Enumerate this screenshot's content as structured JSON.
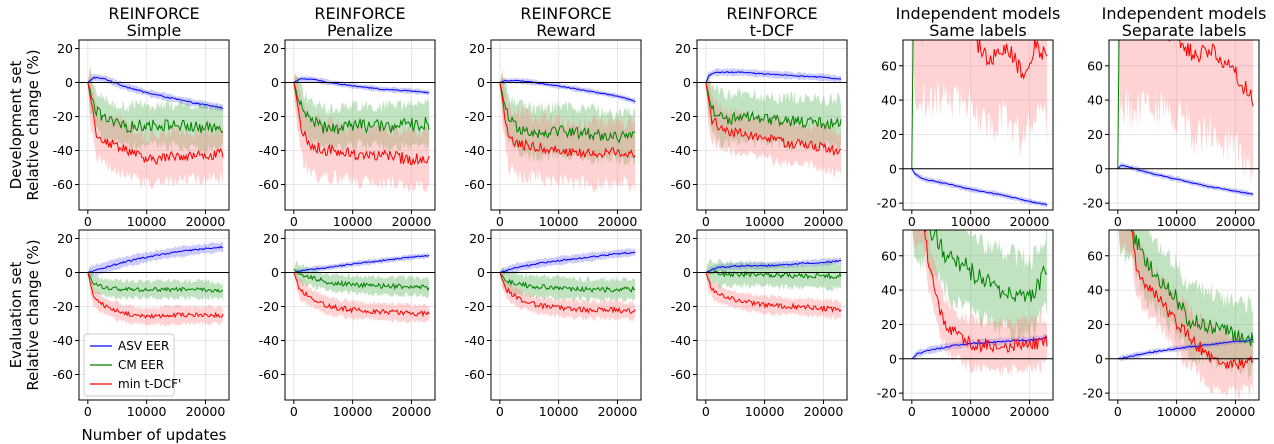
{
  "chart_data": {
    "type": "line",
    "column_titles": [
      [
        "REINFORCE",
        "Simple"
      ],
      [
        "REINFORCE",
        "Penalize"
      ],
      [
        "REINFORCE",
        "Reward"
      ],
      [
        "REINFORCE",
        "t-DCF"
      ],
      [
        "Independent models",
        "Same labels"
      ],
      [
        "Independent models",
        "Separate labels"
      ]
    ],
    "row_labels": [
      [
        "Development set",
        "Relative change (%)"
      ],
      [
        "Evaluation set",
        "Relative change (%)"
      ]
    ],
    "xlabel": "Number of updates",
    "xlim": [
      -1500,
      24000
    ],
    "xticks": [
      0,
      10000,
      20000
    ],
    "ylim_reinforce": [
      -75,
      25
    ],
    "yticks_reinforce": [
      -60,
      -40,
      -20,
      0,
      20
    ],
    "ylim_independent": [
      -24,
      75
    ],
    "yticks_independent": [
      -20,
      0,
      20,
      40,
      60
    ],
    "grid": true,
    "zero_line": true,
    "legend": {
      "placement": "lower-left",
      "panel": "evaluation-simple",
      "entries": [
        "ASV EER",
        "CM EER",
        "min t-DCF'"
      ]
    },
    "series_colors": {
      "asv": "#0000ff",
      "cm": "#008000",
      "tdcf": "#ff0000"
    },
    "band_colors": {
      "asv": "#6b6bff",
      "cm": "#4fae4f",
      "tdcf": "#ff8080"
    },
    "panels": [
      {
        "row": 0,
        "col": 0,
        "curves": {
          "asv": {
            "x": [
              0,
              1000,
              3000,
              6000,
              10000,
              14000,
              18000,
              23000
            ],
            "y": [
              0,
              3,
              2,
              -2,
              -6,
              -9,
              -12,
              -15
            ],
            "band": 2,
            "noise": 0.4
          },
          "cm": {
            "x": [
              0,
              1500,
              3000,
              6000,
              10000,
              15000,
              20000,
              23000
            ],
            "y": [
              0,
              -17,
              -22,
              -26,
              -25,
              -25,
              -27,
              -26
            ],
            "band": 12,
            "noise": 3.5
          },
          "tdcf": {
            "x": [
              0,
              1500,
              3000,
              6000,
              10000,
              15000,
              20000,
              23000
            ],
            "y": [
              0,
              -30,
              -35,
              -38,
              -46,
              -43,
              -43,
              -42
            ],
            "band": 14,
            "noise": 3.0
          }
        }
      },
      {
        "row": 0,
        "col": 1,
        "curves": {
          "asv": {
            "x": [
              0,
              1000,
              3000,
              6000,
              10000,
              15000,
              20000,
              23000
            ],
            "y": [
              0,
              2,
              2,
              0,
              -2,
              -4,
              -5,
              -6
            ],
            "band": 1.5,
            "noise": 0.3
          },
          "cm": {
            "x": [
              0,
              1500,
              3000,
              6000,
              10000,
              15000,
              20000,
              23000
            ],
            "y": [
              0,
              -18,
              -23,
              -28,
              -25,
              -26,
              -25,
              -24
            ],
            "band": 12,
            "noise": 4.0
          },
          "tdcf": {
            "x": [
              0,
              1500,
              3000,
              6000,
              10000,
              15000,
              20000,
              23000
            ],
            "y": [
              0,
              -30,
              -38,
              -40,
              -42,
              -43,
              -45,
              -45
            ],
            "band": 16,
            "noise": 3.5
          }
        }
      },
      {
        "row": 0,
        "col": 2,
        "curves": {
          "asv": {
            "x": [
              0,
              1000,
              3000,
              6000,
              10000,
              15000,
              20000,
              23000
            ],
            "y": [
              0,
              1,
              1,
              0,
              -2,
              -5,
              -8,
              -11
            ],
            "band": 1.5,
            "noise": 0.3
          },
          "cm": {
            "x": [
              0,
              1500,
              3000,
              6000,
              10000,
              15000,
              20000,
              23000
            ],
            "y": [
              0,
              -22,
              -26,
              -30,
              -28,
              -30,
              -32,
              -32
            ],
            "band": 14,
            "noise": 3.5
          },
          "tdcf": {
            "x": [
              0,
              1500,
              3000,
              6000,
              10000,
              15000,
              20000,
              23000
            ],
            "y": [
              0,
              -33,
              -36,
              -38,
              -40,
              -42,
              -41,
              -42
            ],
            "band": 18,
            "noise": 3.0
          }
        }
      },
      {
        "row": 0,
        "col": 3,
        "curves": {
          "asv": {
            "x": [
              0,
              500,
              1500,
              3000,
              6000,
              10000,
              15000,
              20000,
              23000
            ],
            "y": [
              0,
              4,
              6,
              6,
              6,
              5,
              4,
              3,
              2
            ],
            "band": 2,
            "noise": 0.3
          },
          "cm": {
            "x": [
              0,
              1000,
              3000,
              6000,
              10000,
              15000,
              20000,
              23000
            ],
            "y": [
              0,
              -15,
              -22,
              -20,
              -22,
              -23,
              -24,
              -24
            ],
            "band": 14,
            "noise": 3.5
          },
          "tdcf": {
            "x": [
              0,
              1000,
              3000,
              6000,
              10000,
              15000,
              20000,
              23000
            ],
            "y": [
              0,
              -22,
              -28,
              -30,
              -33,
              -36,
              -38,
              -42
            ],
            "band": 12,
            "noise": 3.0
          }
        }
      },
      {
        "row": 0,
        "col": 4,
        "curves": {
          "asv": {
            "x": [
              0,
              500,
              2000,
              5000,
              10000,
              15000,
              20000,
              23000
            ],
            "y": [
              0,
              -3,
              -6,
              -8,
              -12,
              -15,
              -19,
              -21
            ],
            "band": 1.5,
            "noise": 0.3
          },
          "cm": {
            "x": [
              0,
              100,
              500,
              23000
            ],
            "y": [
              0,
              80,
              80,
              80
            ],
            "band": 0,
            "noise": 0
          },
          "tdcf": {
            "x": [
              0,
              3000,
              7000,
              10000,
              13000,
              16000,
              19000,
              21000,
              23000
            ],
            "y": [
              80,
              80,
              80,
              80,
              62,
              72,
              55,
              72,
              65
            ],
            "band": 40,
            "noise": 5.0
          }
        }
      },
      {
        "row": 0,
        "col": 5,
        "curves": {
          "asv": {
            "x": [
              0,
              500,
              3000,
              6000,
              10000,
              15000,
              20000,
              23000
            ],
            "y": [
              0,
              2,
              0,
              -3,
              -6,
              -10,
              -13,
              -15
            ],
            "band": 1.5,
            "noise": 0.3
          },
          "cm": {
            "x": [
              0,
              100,
              500,
              23000
            ],
            "y": [
              0,
              80,
              80,
              80
            ],
            "band": 0,
            "noise": 0
          },
          "tdcf": {
            "x": [
              0,
              3000,
              7000,
              10000,
              13000,
              16000,
              19000,
              21000,
              23000
            ],
            "y": [
              80,
              80,
              80,
              78,
              65,
              70,
              60,
              50,
              40
            ],
            "band": 45,
            "noise": 5.0
          }
        }
      },
      {
        "row": 1,
        "col": 0,
        "curves": {
          "asv": {
            "x": [
              0,
              3000,
              6000,
              10000,
              15000,
              20000,
              23000
            ],
            "y": [
              0,
              3,
              6,
              9,
              12,
              14,
              15
            ],
            "band": 3,
            "noise": 0.5
          },
          "cm": {
            "x": [
              0,
              1000,
              3000,
              6000,
              10000,
              15000,
              20000,
              23000
            ],
            "y": [
              0,
              -7,
              -9,
              -10,
              -10,
              -10,
              -10,
              -11
            ],
            "band": 5,
            "noise": 1.2
          },
          "tdcf": {
            "x": [
              0,
              1000,
              3000,
              6000,
              10000,
              15000,
              20000,
              23000
            ],
            "y": [
              0,
              -15,
              -20,
              -24,
              -26,
              -25,
              -25,
              -25
            ],
            "band": 5,
            "noise": 1.2
          }
        }
      },
      {
        "row": 1,
        "col": 1,
        "curves": {
          "asv": {
            "x": [
              0,
              3000,
              6000,
              10000,
              15000,
              20000,
              23000
            ],
            "y": [
              0,
              2,
              3,
              5,
              7,
              9,
              10
            ],
            "band": 1.5,
            "noise": 0.4
          },
          "cm": {
            "x": [
              0,
              1000,
              3000,
              6000,
              10000,
              15000,
              20000,
              23000
            ],
            "y": [
              2,
              -1,
              -3,
              -6,
              -7,
              -8,
              -8,
              -9
            ],
            "band": 5,
            "noise": 1.5
          },
          "tdcf": {
            "x": [
              0,
              1000,
              3000,
              6000,
              10000,
              15000,
              20000,
              23000
            ],
            "y": [
              0,
              -10,
              -15,
              -20,
              -22,
              -23,
              -24,
              -24
            ],
            "band": 5,
            "noise": 1.5
          }
        }
      },
      {
        "row": 1,
        "col": 2,
        "curves": {
          "asv": {
            "x": [
              0,
              3000,
              6000,
              10000,
              15000,
              20000,
              23000
            ],
            "y": [
              0,
              3,
              5,
              7,
              9,
              11,
              12
            ],
            "band": 2.5,
            "noise": 0.5
          },
          "cm": {
            "x": [
              0,
              1000,
              3000,
              6000,
              10000,
              15000,
              20000,
              23000
            ],
            "y": [
              0,
              -5,
              -7,
              -8,
              -9,
              -10,
              -10,
              -10
            ],
            "band": 6,
            "noise": 1.5
          },
          "tdcf": {
            "x": [
              0,
              1000,
              3000,
              6000,
              10000,
              15000,
              20000,
              23000
            ],
            "y": [
              0,
              -10,
              -15,
              -19,
              -21,
              -22,
              -22,
              -23
            ],
            "band": 5,
            "noise": 1.5
          }
        }
      },
      {
        "row": 1,
        "col": 3,
        "curves": {
          "asv": {
            "x": [
              0,
              2000,
              6000,
              10000,
              15000,
              20000,
              23000
            ],
            "y": [
              0,
              3,
              4,
              4,
              5,
              6,
              7
            ],
            "band": 2,
            "noise": 0.5
          },
          "cm": {
            "x": [
              0,
              1000,
              3000,
              6000,
              10000,
              15000,
              20000,
              23000
            ],
            "y": [
              0,
              0,
              -1,
              -1,
              -1,
              -2,
              -2,
              -2
            ],
            "band": 7,
            "noise": 1.5
          },
          "tdcf": {
            "x": [
              0,
              1000,
              3000,
              6000,
              10000,
              15000,
              20000,
              23000
            ],
            "y": [
              0,
              -10,
              -14,
              -17,
              -19,
              -20,
              -21,
              -22
            ],
            "band": 5,
            "noise": 1.5
          }
        }
      },
      {
        "row": 1,
        "col": 4,
        "curves": {
          "asv": {
            "x": [
              0,
              1000,
              3000,
              6000,
              10000,
              15000,
              20000,
              23000
            ],
            "y": [
              0,
              3,
              5,
              7,
              9,
              10,
              11,
              12
            ],
            "band": 2,
            "noise": 0.5
          },
          "cm": {
            "x": [
              0,
              1000,
              2000,
              4000,
              6000,
              9000,
              12000,
              16000,
              20000,
              23000
            ],
            "y": [
              80,
              80,
              80,
              72,
              60,
              55,
              45,
              40,
              35,
              52
            ],
            "band": 22,
            "noise": 6.0
          },
          "tdcf": {
            "x": [
              0,
              500,
              2000,
              3000,
              4000,
              5000,
              6000,
              9000,
              12000,
              16000,
              20000,
              23000
            ],
            "y": [
              80,
              80,
              80,
              52,
              40,
              26,
              18,
              10,
              8,
              7,
              9,
              10
            ],
            "band": 14,
            "noise": 4.0
          }
        }
      },
      {
        "row": 1,
        "col": 5,
        "curves": {
          "asv": {
            "x": [
              0,
              3000,
              6000,
              10000,
              15000,
              20000,
              23000
            ],
            "y": [
              0,
              2,
              4,
              6,
              8,
              10,
              11
            ],
            "band": 1.5,
            "noise": 0.4
          },
          "cm": {
            "x": [
              0,
              2000,
              3000,
              5000,
              8000,
              10000,
              12000,
              15000,
              18000,
              23000
            ],
            "y": [
              80,
              80,
              70,
              55,
              42,
              35,
              22,
              20,
              16,
              12
            ],
            "band": 20,
            "noise": 5.0
          },
          "tdcf": {
            "x": [
              0,
              1500,
              2500,
              3000,
              5000,
              8000,
              10000,
              13000,
              16000,
              20000,
              23000
            ],
            "y": [
              80,
              80,
              75,
              55,
              42,
              30,
              20,
              10,
              0,
              -3,
              -3
            ],
            "band": 16,
            "noise": 4.0
          }
        }
      }
    ]
  }
}
